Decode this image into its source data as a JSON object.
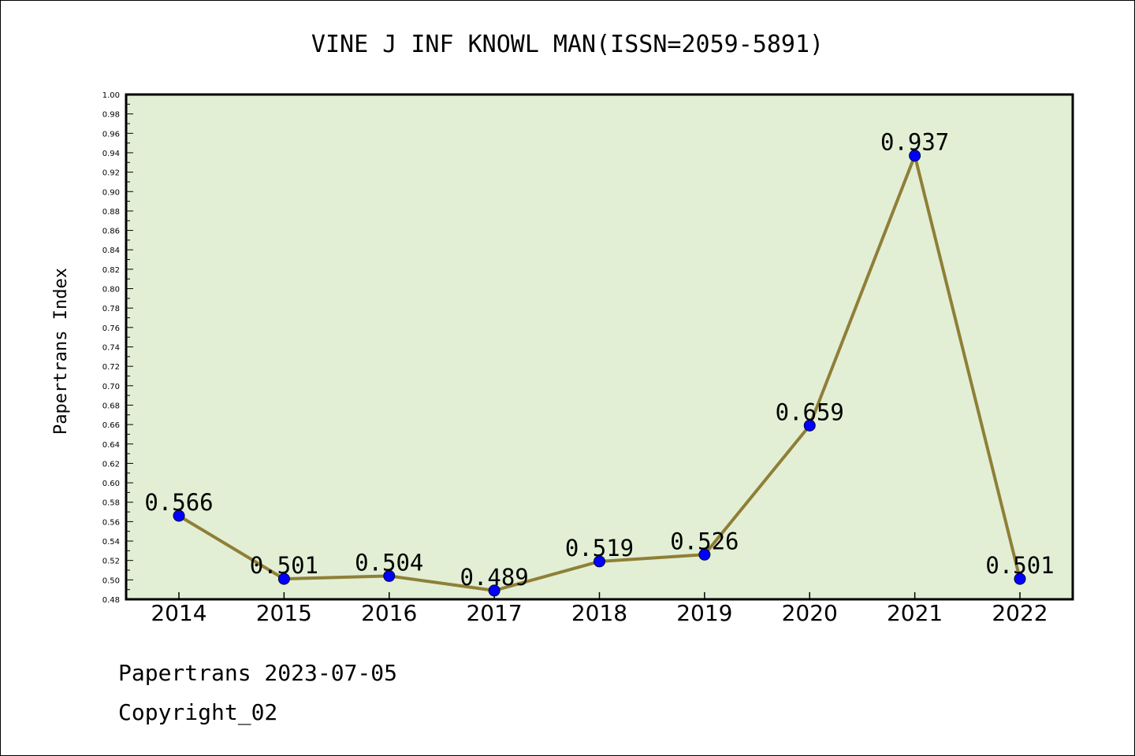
{
  "chart_data": {
    "type": "line",
    "title": "VINE J INF KNOWL MAN(ISSN=2059-5891)",
    "xlabel": "",
    "ylabel": "Papertrans Index",
    "categories": [
      "2014",
      "2015",
      "2016",
      "2017",
      "2018",
      "2019",
      "2020",
      "2021",
      "2022"
    ],
    "values": [
      0.566,
      0.501,
      0.504,
      0.489,
      0.519,
      0.526,
      0.659,
      0.937,
      0.501
    ],
    "data_labels": [
      "0.566",
      "0.501",
      "0.504",
      "0.489",
      "0.519",
      "0.526",
      "0.659",
      "0.937",
      "0.501"
    ],
    "ylim": [
      0.48,
      1.0
    ],
    "yticks": [
      "0.48",
      "0.50",
      "0.52",
      "0.54",
      "0.56",
      "0.58",
      "0.60",
      "0.62",
      "0.64",
      "0.66",
      "0.68",
      "0.70",
      "0.72",
      "0.74",
      "0.76",
      "0.78",
      "0.80",
      "0.82",
      "0.84",
      "0.86",
      "0.88",
      "0.90",
      "0.92",
      "0.94",
      "0.96",
      "0.98",
      "1.00"
    ],
    "grid": false,
    "legend": "none",
    "colors": {
      "plot_background": "#e2efd5",
      "line": "#8f7f37",
      "marker": "#0000ff"
    }
  },
  "footer": {
    "source": "Papertrans 2023-07-05",
    "copyright": "Copyright_02"
  }
}
